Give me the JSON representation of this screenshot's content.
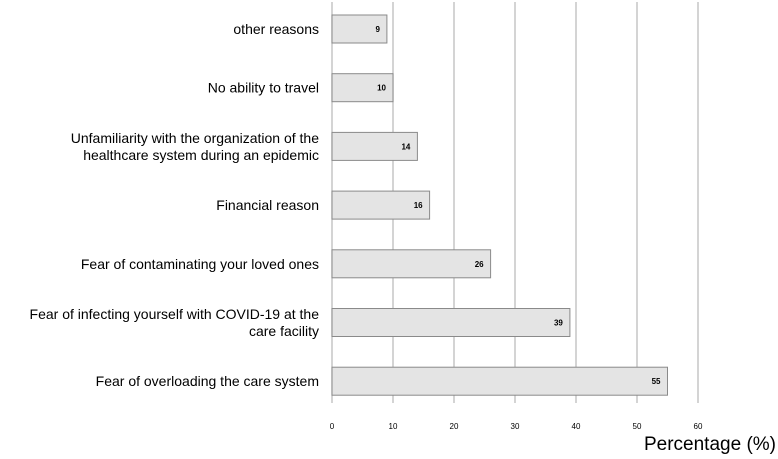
{
  "chart_data": {
    "type": "bar",
    "orientation": "horizontal",
    "categories": [
      "other reasons",
      "No ability to travel",
      "Unfamiliarity with the organization of the healthcare system during an epidemic",
      "Financial reason",
      "Fear of contaminating your loved ones",
      "Fear of infecting yourself with COVID-19 at the care facility",
      "Fear of overloading the care system"
    ],
    "category_lines": [
      [
        "other reasons"
      ],
      [
        "No ability to travel"
      ],
      [
        "Unfamiliarity with the organization of the",
        "healthcare system during an epidemic"
      ],
      [
        "Financial reason"
      ],
      [
        "Fear of contaminating your loved ones"
      ],
      [
        "Fear of infecting yourself with COVID-19 at the",
        "care facility"
      ],
      [
        "Fear of overloading the care system"
      ]
    ],
    "values": [
      9,
      10,
      14,
      16,
      26,
      39,
      55
    ],
    "data_labels": [
      "9",
      "10",
      "14",
      "16",
      "26",
      "39",
      "55"
    ],
    "xlabel": "Percentage (%)",
    "xlim": [
      0,
      60
    ],
    "xticks": [
      0,
      10,
      20,
      30,
      40,
      50,
      60
    ],
    "grid": "vertical",
    "legend": "none",
    "bar_color": "#e4e4e4",
    "bar_edge_color": "#8a8a8a",
    "grid_color": "#bdbdbd"
  }
}
